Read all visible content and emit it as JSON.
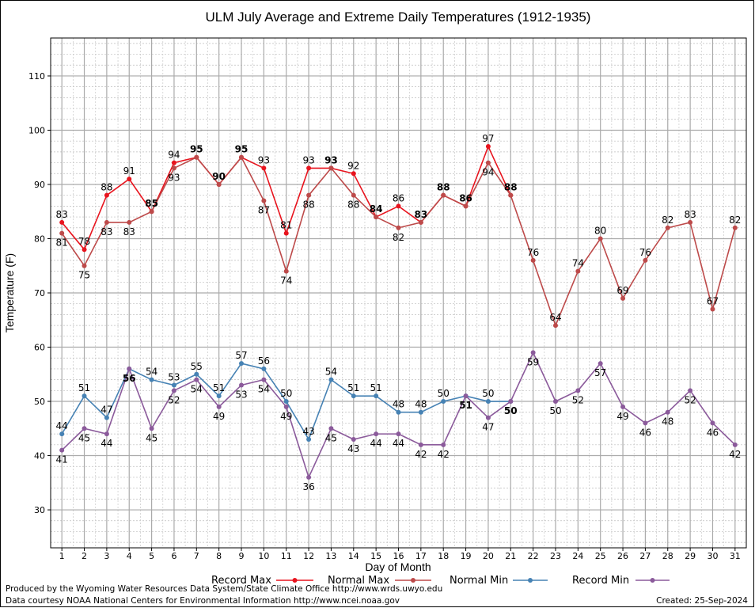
{
  "chart_data": {
    "type": "line",
    "title": "ULM July Average and Extreme Daily Temperatures (1912-1935)",
    "xlabel": "Day of Month",
    "ylabel": "Temperature (F)",
    "xlim": [
      0.5,
      31.5
    ],
    "ylim": [
      23,
      117
    ],
    "yticks": [
      30,
      40,
      50,
      60,
      70,
      80,
      90,
      100,
      110
    ],
    "xticks": [
      1,
      2,
      3,
      4,
      5,
      6,
      7,
      8,
      9,
      10,
      11,
      12,
      13,
      14,
      15,
      16,
      17,
      18,
      19,
      20,
      21,
      22,
      23,
      24,
      25,
      26,
      27,
      28,
      29,
      30,
      31
    ],
    "grid": true,
    "legend_placement": "bottom",
    "series": [
      {
        "name": "Record Max",
        "color": "#e8141e",
        "x": [
          1,
          2,
          3,
          4,
          5,
          6,
          7,
          8,
          9,
          10,
          11,
          12,
          13,
          14,
          15,
          16,
          17,
          18,
          19,
          20,
          21
        ],
        "values": [
          83,
          78,
          88,
          91,
          85,
          94,
          95,
          90,
          95,
          93,
          81,
          93,
          93,
          92,
          84,
          86,
          83,
          88,
          86,
          97,
          88
        ],
        "labels": [
          "83",
          "78",
          "88",
          "91",
          "85",
          "94",
          "95",
          "90",
          "95",
          "93",
          "81",
          "93",
          "93",
          "92",
          "84",
          "86",
          "83",
          "88",
          "86",
          "97",
          "88"
        ]
      },
      {
        "name": "Normal Max",
        "color": "#bd4a4a",
        "x": [
          1,
          2,
          3,
          4,
          5,
          6,
          7,
          8,
          9,
          10,
          11,
          12,
          13,
          14,
          15,
          16,
          17,
          18,
          19,
          20,
          21,
          22,
          23,
          24,
          25,
          26,
          27,
          28,
          29,
          30,
          31
        ],
        "values": [
          81,
          75,
          83,
          83,
          85,
          93,
          95,
          90,
          95,
          87,
          74,
          88,
          93,
          88,
          84,
          82,
          83,
          88,
          86,
          94,
          88,
          76,
          64,
          74,
          80,
          69,
          76,
          82,
          83,
          67,
          82
        ],
        "labels": [
          "81",
          "75",
          "83",
          "83",
          "85",
          "93",
          "95",
          "90",
          "95",
          "87",
          "74",
          "88",
          "93",
          "88",
          "84",
          "82",
          "83",
          "88",
          "86",
          "94",
          "88",
          "76",
          "64",
          "74",
          "80",
          "69",
          "76",
          "82",
          "83",
          "67",
          "82"
        ]
      },
      {
        "name": "Normal Min",
        "color": "#4682b4",
        "x": [
          1,
          2,
          3,
          4,
          5,
          6,
          7,
          8,
          9,
          10,
          11,
          12,
          13,
          14,
          15,
          16,
          17,
          18,
          19,
          20,
          21
        ],
        "values": [
          44,
          51,
          47,
          56,
          54,
          53,
          55,
          51,
          57,
          56,
          50,
          43,
          54,
          51,
          51,
          48,
          48,
          50,
          51,
          50,
          50
        ],
        "labels": [
          "44",
          "51",
          "47",
          "56",
          "54",
          "53",
          "55",
          "51",
          "57",
          "56",
          "50",
          "43",
          "54",
          "51",
          "51",
          "48",
          "48",
          "50",
          "51",
          "50",
          "50"
        ]
      },
      {
        "name": "Record Min",
        "color": "#8b5a9b",
        "x": [
          1,
          2,
          3,
          4,
          5,
          6,
          7,
          8,
          9,
          10,
          11,
          12,
          13,
          14,
          15,
          16,
          17,
          18,
          19,
          20,
          21,
          22,
          23,
          24,
          25,
          26,
          27,
          28,
          29,
          30,
          31
        ],
        "values": [
          41,
          45,
          44,
          56,
          45,
          52,
          54,
          49,
          53,
          54,
          49,
          36,
          45,
          43,
          44,
          44,
          42,
          42,
          51,
          47,
          50,
          59,
          50,
          52,
          57,
          49,
          46,
          48,
          52,
          46,
          42
        ],
        "labels": [
          "41",
          "45",
          "44",
          "56",
          "45",
          "52",
          "54",
          "49",
          "53",
          "54",
          "49",
          "36",
          "45",
          "43",
          "44",
          "44",
          "42",
          "42",
          "51",
          "47",
          "50",
          "59",
          "50",
          "52",
          "57",
          "49",
          "46",
          "48",
          "52",
          "46",
          "42"
        ]
      }
    ]
  },
  "footer": {
    "produced_by": "Produced by the Wyoming Water Resources Data System/State Climate Office http://www.wrds.uwyo.edu",
    "courtesy": "Data courtesy NOAA National Centers for Environmental Information http://www.ncei.noaa.gov",
    "created": "Created:  25-Sep-2024"
  }
}
